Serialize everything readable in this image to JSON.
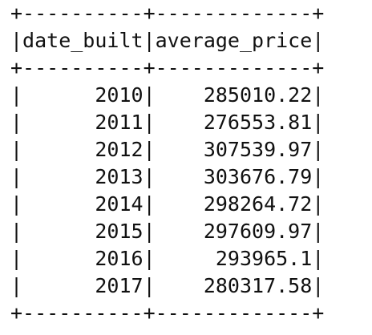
{
  "table": {
    "border_line": "+----------+-------------+",
    "header": {
      "columns": [
        "date_built",
        "average_price"
      ]
    },
    "rows": [
      [
        "2010",
        "285010.22"
      ],
      [
        "2011",
        "276553.81"
      ],
      [
        "2012",
        "307539.97"
      ],
      [
        "2013",
        "303676.79"
      ],
      [
        "2014",
        "298264.72"
      ],
      [
        "2015",
        "297609.97"
      ],
      [
        "2016",
        "293965.1"
      ],
      [
        "2017",
        "280317.58"
      ]
    ]
  }
}
